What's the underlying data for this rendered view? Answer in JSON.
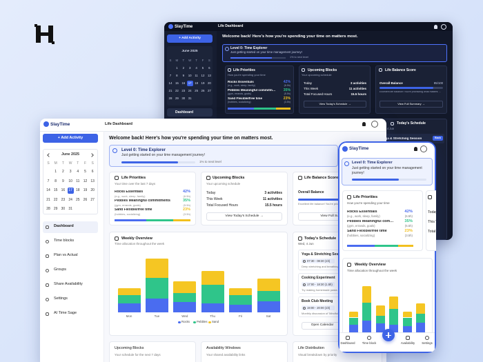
{
  "brand": "SlayTime",
  "page_title": "Life Dashboard",
  "add_activity": "+ Add Activity",
  "calendar": {
    "month": "June 2025",
    "weekdays": [
      "S",
      "M",
      "T",
      "W",
      "T",
      "F",
      "S"
    ],
    "weeks": [
      [
        1,
        2,
        3,
        4,
        5,
        6
      ],
      [
        7,
        8,
        9,
        10,
        11,
        12,
        13
      ],
      [
        14,
        15,
        16,
        17,
        18,
        19,
        20
      ],
      [
        21,
        22,
        23,
        24,
        25,
        26,
        27
      ],
      [
        28,
        29,
        30,
        31
      ]
    ],
    "selected": 17
  },
  "nav": [
    "Dashboard",
    "Time blocks",
    "Plan vs Actual",
    "Groups",
    "Share Availability",
    "Settings",
    "AI Time Sage"
  ],
  "welcome": "Welcome back! Here's how you're spending your time on matters most.",
  "level": {
    "title": "Level 0: Time Explorer",
    "subtitle": "Just getting started on your time management journey!",
    "progress": "1% to next level"
  },
  "priorities": {
    "title": "Life Priorities",
    "subtitle": "Your time over the last 7 days",
    "mobile_subtitle": "How you're spending your time",
    "rows": [
      {
        "name": "Rocks Essentials",
        "note": "(e.g., work, sleep, family)",
        "share": 42,
        "share_label": "42%",
        "hours": "(6.5h)",
        "color": "#4a6cf0"
      },
      {
        "name": "Pebbles Meaningful commitments",
        "note": "(gym, errands, goals)",
        "share": 35,
        "share_label": "35%",
        "hours": "(5.5h)",
        "color": "#2fc58a"
      },
      {
        "name": "Sand Flexible/free time",
        "note": "(hobbies, socializing)",
        "share": 23,
        "share_label": "23%",
        "hours": "(3.5h)",
        "color": "#f2c01e"
      }
    ]
  },
  "upcoming": {
    "title": "Upcoming Blocks",
    "subtitle": "Your upcoming schedule",
    "rows": [
      [
        "Today",
        "3 activities"
      ],
      [
        "This Week",
        "11 activities"
      ],
      [
        "Total Focused Hours",
        "15.5 hours"
      ]
    ],
    "button": "View Today's Schedule →"
  },
  "balance": {
    "title": "Life Balance Score",
    "overall": "Overall Balance",
    "score": "85/100",
    "message": "Excellent life balance! You're prioritizing what matters most.",
    "button": "View Full Summary →"
  },
  "weekly": {
    "title": "Weekly Overview",
    "subtitle": "Time allocation throughout the week",
    "days": [
      "Mon",
      "Tue",
      "Wed",
      "Thu",
      "Fri",
      "Sat"
    ],
    "series": [
      {
        "name": "Rocks",
        "color": "#4a6cf0",
        "values": [
          2.6,
          4,
          3,
          2.6,
          2.2,
          3.2
        ]
      },
      {
        "name": "Pebbles",
        "color": "#2fc58a",
        "values": [
          2.4,
          6,
          2.6,
          5.4,
          2.8,
          3
        ]
      },
      {
        "name": "Sand",
        "color": "#f5c623",
        "values": [
          2,
          5.6,
          3.4,
          4,
          2,
          3.6
        ]
      }
    ]
  },
  "schedule": {
    "title": "Today's Schedule",
    "date": "Wed, 4 Jun",
    "tag": "Back",
    "items": [
      {
        "name": "Yoga & Stretching Session",
        "time": "07:30 - 08:30 (1h)",
        "note": "Deep stretching and breathing"
      },
      {
        "name": "Cooking Experiment",
        "time": "17:00 - 18:30 (1.5h)",
        "note": "Try making homemade pasta"
      },
      {
        "name": "Book Club Meeting",
        "time": "19:00 - 20:00 (1h)",
        "note": "Monthly discussion of 'Mindfulness'"
      }
    ],
    "button": "Open Calendar"
  },
  "bottom_cards": [
    {
      "title": "Upcoming Blocks",
      "subtitle": "Your schedule for the next 7 days"
    },
    {
      "title": "Availability Windows",
      "subtitle": "Your shared availability links"
    },
    {
      "title": "Life Distribution",
      "subtitle": "Visual breakdown by priority"
    }
  ],
  "mobile_nav": [
    "Dashboard",
    "Time block",
    "Availability",
    "Settings"
  ]
}
